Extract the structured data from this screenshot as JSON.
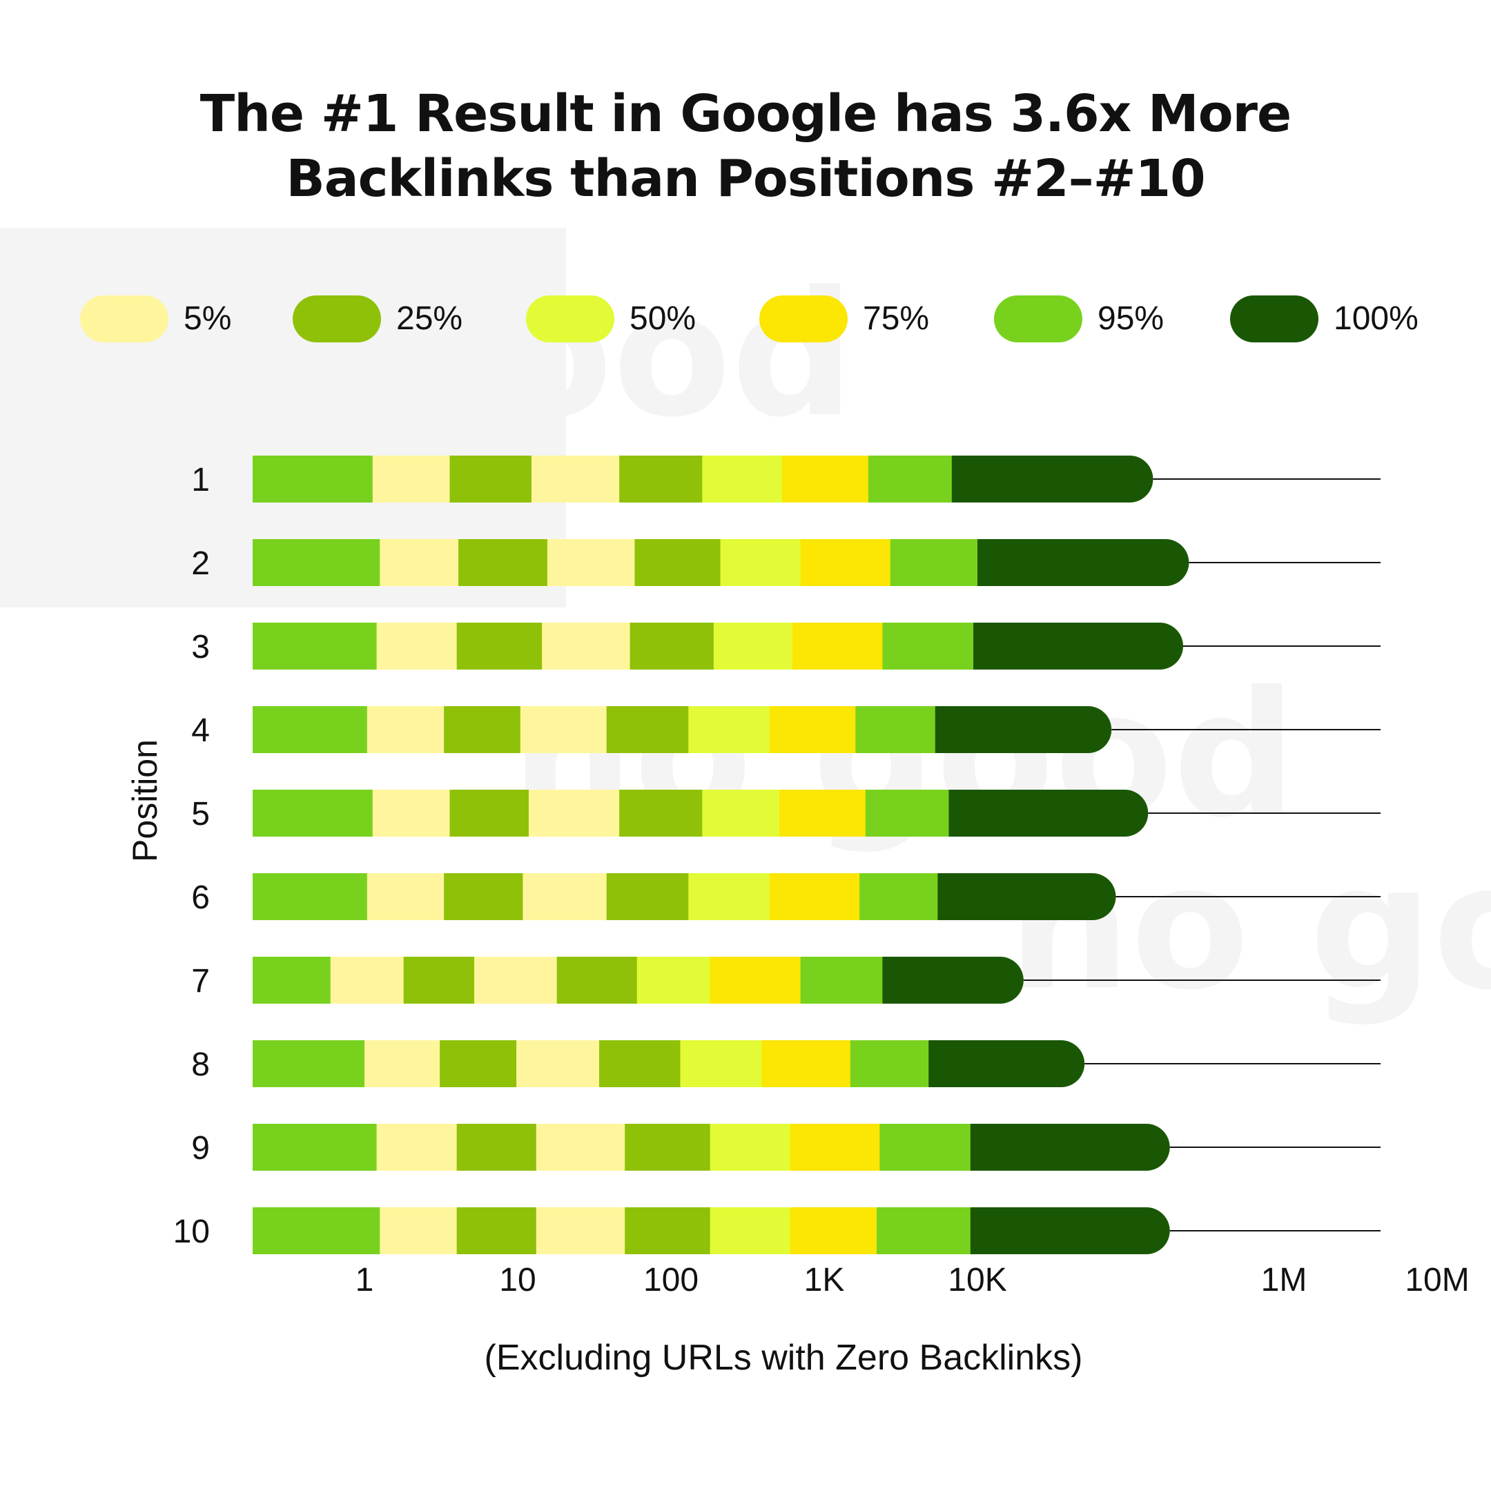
{
  "title_lines": [
    "The #1 Result in Google has 3.6x More",
    "Backlinks than Positions #2–#10"
  ],
  "legend": [
    {
      "label": "5%",
      "color": "#FFF59D"
    },
    {
      "label": "25%",
      "color": "#8FC108"
    },
    {
      "label": "50%",
      "color": "#E2FB36"
    },
    {
      "label": "75%",
      "color": "#FBE604"
    },
    {
      "label": "95%",
      "color": "#78D21D"
    },
    {
      "label": "100%",
      "color": "#1A5704"
    }
  ],
  "watermark": "no good",
  "chart_data": {
    "type": "bar",
    "orientation": "horizontal",
    "scale": "log",
    "categories": [
      "1",
      "2",
      "3",
      "4",
      "5",
      "6",
      "7",
      "8",
      "9",
      "10"
    ],
    "ylabel": "Position",
    "xnote": "(Excluding URLs with Zero Backlinks)",
    "xticks": [
      {
        "value": 1,
        "label": "1"
      },
      {
        "value": 10,
        "label": "10"
      },
      {
        "value": 100,
        "label": "100"
      },
      {
        "value": 1000,
        "label": "1K"
      },
      {
        "value": 10000,
        "label": "10K"
      },
      {
        "value": 1000000,
        "label": "1M"
      },
      {
        "value": 10000000,
        "label": "10M"
      }
    ],
    "segment_sequence": [
      "95%",
      "5%",
      "25%",
      "5%",
      "25%",
      "50%",
      "75%",
      "95%",
      "100%"
    ],
    "segment_colors": [
      "#78D21D",
      "#FFF59D",
      "#8FC108",
      "#FFF59D",
      "#8FC108",
      "#E2FB36",
      "#FBE604",
      "#78D21D",
      "#1A5704"
    ],
    "series": [
      {
        "category": "1",
        "boundaries": [
          1.13,
          3.6,
          12.3,
          46,
          160,
          530,
          1940,
          6800,
          140000
        ]
      },
      {
        "category": "2",
        "boundaries": [
          1.26,
          4.1,
          15.6,
          58,
          210,
          700,
          2700,
          10000,
          240000
        ]
      },
      {
        "category": "3",
        "boundaries": [
          1.2,
          4.0,
          14.4,
          54,
          190,
          620,
          2400,
          9400,
          220000
        ]
      },
      {
        "category": "4",
        "boundaries": [
          1.04,
          3.3,
          10.4,
          38,
          130,
          440,
          1600,
          5300,
          75000
        ]
      },
      {
        "category": "5",
        "boundaries": [
          1.13,
          3.6,
          11.8,
          46,
          160,
          510,
          1860,
          6500,
          130000
        ]
      },
      {
        "category": "6",
        "boundaries": [
          1.04,
          3.3,
          10.8,
          38,
          130,
          440,
          1700,
          5500,
          80000
        ]
      },
      {
        "category": "7",
        "boundaries": [
          0.6,
          1.8,
          5.2,
          18,
          60,
          180,
          700,
          2400,
          20000
        ]
      },
      {
        "category": "8",
        "boundaries": [
          1.0,
          3.1,
          9.8,
          34,
          115,
          390,
          1480,
          4800,
          50000
        ]
      },
      {
        "category": "9",
        "boundaries": [
          1.2,
          4.0,
          13.2,
          50,
          180,
          600,
          2300,
          9000,
          180000
        ]
      },
      {
        "category": "10",
        "boundaries": [
          1.26,
          4.0,
          13.2,
          50,
          180,
          600,
          2200,
          9000,
          180000
        ]
      }
    ]
  }
}
